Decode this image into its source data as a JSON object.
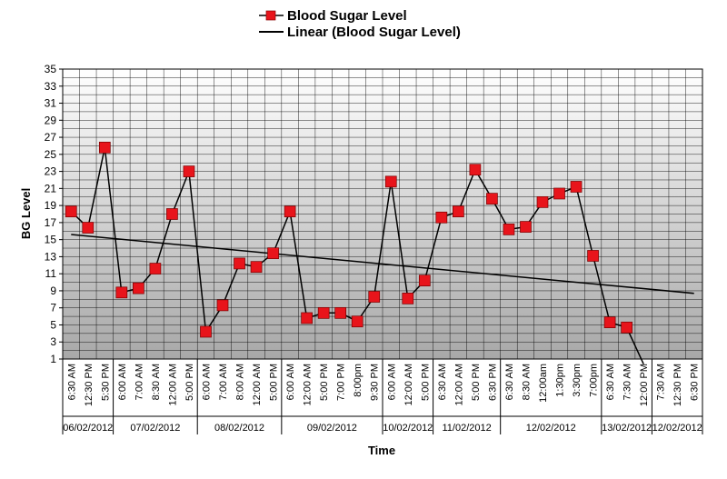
{
  "chart_data": {
    "type": "line",
    "title": "",
    "xlabel": "Time",
    "ylabel": "BG Level",
    "ylim": [
      1,
      35
    ],
    "yticks": [
      1,
      3,
      5,
      7,
      9,
      11,
      13,
      15,
      17,
      19,
      21,
      23,
      25,
      27,
      29,
      31,
      33,
      35
    ],
    "grid": true,
    "legend_position": "top",
    "legend": [
      "Blood Sugar Level",
      "Linear (Blood Sugar Level)"
    ],
    "x_tick_labels": [
      "6:30 AM",
      "12:30 PM",
      "5:30 PM",
      "6:00 AM",
      "7:00 AM",
      "8:30 AM",
      "12:00 AM",
      "5:00 PM",
      "6:00 AM",
      "7:00 AM",
      "8:00 AM",
      "12:00 AM",
      "5:00 PM",
      "6:00 AM",
      "12:00 AM",
      "5:00 PM",
      "7:00 PM",
      "8:00pm",
      "9:30 PM",
      "6:00 AM",
      "12:00 AM",
      "5:00 PM",
      "6:30 AM",
      "12:00 AM",
      "5:00 PM",
      "6:30 PM",
      "6:30 AM",
      "8:30 AM",
      "12:00am",
      "1:30pm",
      "3:30pm",
      "7:00pm",
      "6:30 AM",
      "7:30 AM",
      "12:00 PM",
      "7:30 AM",
      "12:30 PM",
      "6:30 PM"
    ],
    "date_groups": [
      {
        "label": "06/02/2012",
        "count": 3
      },
      {
        "label": "07/02/2012",
        "count": 5
      },
      {
        "label": "08/02/2012",
        "count": 5
      },
      {
        "label": "09/02/2012",
        "count": 6
      },
      {
        "label": "10/02/2012",
        "count": 3
      },
      {
        "label": "11/02/2012",
        "count": 4
      },
      {
        "label": "12/02/2012",
        "count": 6
      },
      {
        "label": "13/02/2012",
        "count": 3
      },
      {
        "label": "12/02/2012",
        "count": 3
      }
    ],
    "series": [
      {
        "name": "Blood Sugar Level",
        "color": "#e8141b",
        "values": [
          18.3,
          16.4,
          25.8,
          8.8,
          9.3,
          11.6,
          18,
          23,
          4.2,
          7.3,
          12.2,
          11.8,
          13.4,
          18.3,
          5.8,
          6.4,
          6.4,
          5.4,
          8.3,
          21.8,
          8.1,
          10.2,
          17.6,
          18.3,
          23.2,
          19.8,
          16.2,
          16.5,
          19.4,
          20.4,
          21.2,
          13.1,
          5.3,
          4.7,
          0.4,
          null,
          null,
          null
        ]
      }
    ],
    "trendline": {
      "name": "Linear (Blood Sugar Level)",
      "color": "#000000",
      "start": 15.6,
      "end": 8.7,
      "x_end_index": 37
    }
  }
}
